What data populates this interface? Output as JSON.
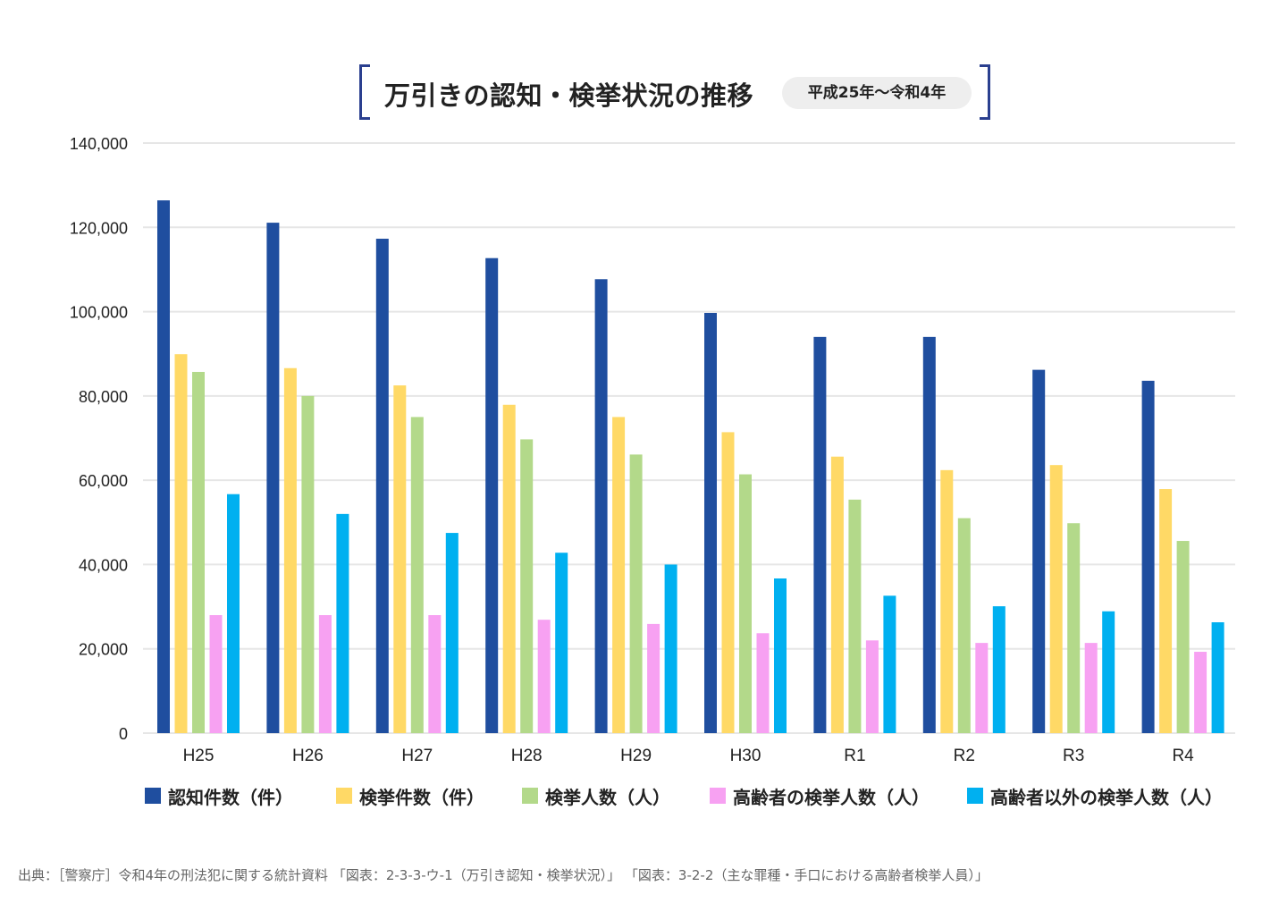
{
  "title": "万引きの認知・検挙状況の推移",
  "subtitle": "平成25年〜令和4年",
  "source": "出典：［警察庁］令和4年の刑法犯に関する統計資料 「図表：2-3-3-ウ-1（万引き認知・検挙状況）」 「図表：3-2-2（主な罪種・手口における高齢者検挙人員）」",
  "chart_data": {
    "type": "bar",
    "categories": [
      "H25",
      "H26",
      "H27",
      "H28",
      "H29",
      "H30",
      "R1",
      "R2",
      "R3",
      "R4"
    ],
    "ylim": [
      0,
      140000
    ],
    "yticks": [
      0,
      20000,
      40000,
      60000,
      80000,
      100000,
      120000,
      140000
    ],
    "ytick_labels": [
      "0",
      "20,000",
      "40,000",
      "60,000",
      "80,000",
      "100,000",
      "120,000",
      "140,000"
    ],
    "grid": true,
    "legend_position": "bottom",
    "series": [
      {
        "name": "認知件数（件）",
        "color": "#1f4e9f",
        "values": [
          126400,
          121100,
          117300,
          112700,
          107700,
          99700,
          94000,
          94000,
          86200,
          83600
        ]
      },
      {
        "name": "検挙件数（件）",
        "color": "#ffd966",
        "values": [
          89900,
          86600,
          82500,
          77900,
          75000,
          71400,
          65600,
          62400,
          63600,
          57900
        ]
      },
      {
        "name": "検挙人数（人）",
        "color": "#b3d98a",
        "values": [
          85700,
          80000,
          75000,
          69700,
          66100,
          61400,
          55400,
          51000,
          49800,
          45600
        ]
      },
      {
        "name": "高齢者の検挙人数（人）",
        "color": "#f7a1f2",
        "values": [
          28000,
          28000,
          28000,
          26900,
          25900,
          23700,
          22000,
          21400,
          21400,
          19300
        ]
      },
      {
        "name": "高齢者以外の検挙人数（人）",
        "color": "#00b0f0",
        "values": [
          56700,
          52000,
          47500,
          42800,
          40000,
          36700,
          32600,
          30100,
          28900,
          26300
        ]
      }
    ]
  }
}
